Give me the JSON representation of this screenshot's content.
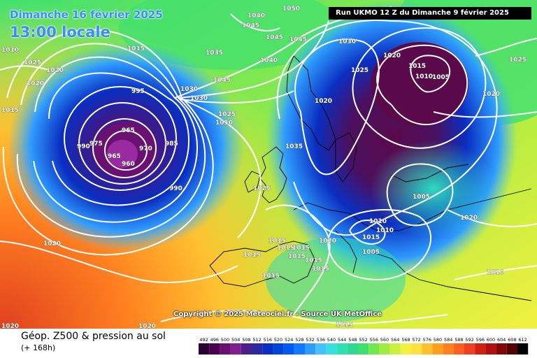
{
  "header": {
    "date": "Dimanche 16 février 2025",
    "time": "13:00 locale",
    "run": "Run UKMO 12 Z du Dimanche 9 février 2025"
  },
  "copyright": "Copyright © 2025 Meteociel.fr - Source UK MetOffice",
  "footer": {
    "title": "Géop. Z500 & pression au sol",
    "subtitle": "(+ 168h)"
  },
  "legend": {
    "labels": [
      "492",
      "496",
      "500",
      "504",
      "508",
      "512",
      "516",
      "520",
      "524",
      "528",
      "532",
      "536",
      "540",
      "544",
      "548",
      "552",
      "556",
      "560",
      "564",
      "568",
      "572",
      "576",
      "580",
      "584",
      "588",
      "592",
      "596",
      "600",
      "604",
      "608",
      "612"
    ],
    "colors": [
      "#2b0033",
      "#4a0050",
      "#6a1070",
      "#80208c",
      "#4b1e8c",
      "#2a2a9e",
      "#0a2ec0",
      "#0044d8",
      "#005af0",
      "#1478ff",
      "#2e9bff",
      "#46c0ff",
      "#3adde0",
      "#30e0b0",
      "#30d890",
      "#40e070",
      "#70e850",
      "#a0ec40",
      "#ccf040",
      "#f2f040",
      "#ffe040",
      "#ffc030",
      "#ffa020",
      "#ff8020",
      "#ff6020",
      "#f04020",
      "#d02010",
      "#b01010",
      "#800808",
      "#500404",
      "#000000"
    ]
  },
  "isobars": [
    "1010",
    "1025",
    "1020",
    "1015",
    "995",
    "1035",
    "1040",
    "1045",
    "1050",
    "965",
    "970",
    "990",
    "975",
    "960",
    "985",
    "1030",
    "1005",
    "1000"
  ]
}
